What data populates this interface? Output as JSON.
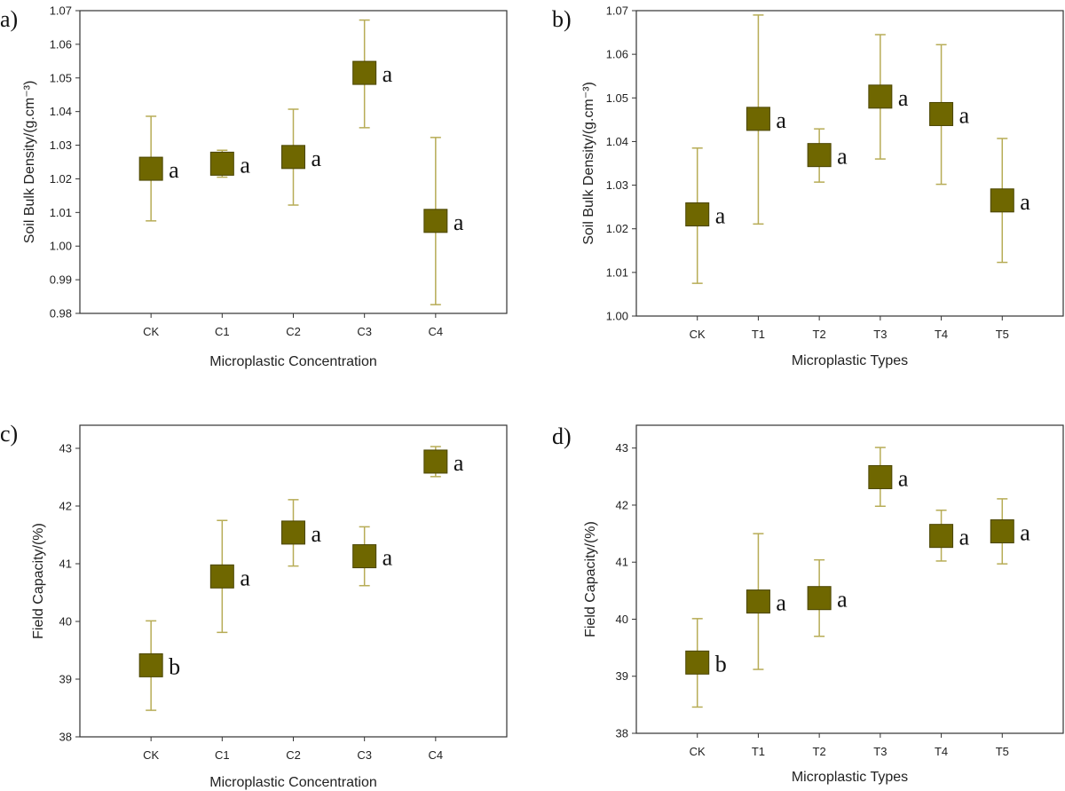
{
  "chart_data": [
    {
      "type": "scatter",
      "panel_label": "a)",
      "categories": [
        "CK",
        "C1",
        "C2",
        "C3",
        "C4"
      ],
      "values": [
        1.023,
        1.0245,
        1.0265,
        1.0515,
        1.0075
      ],
      "error_low": [
        1.0075,
        1.0205,
        1.0122,
        1.0352,
        0.9826
      ],
      "error_high": [
        1.0386,
        1.0285,
        1.0407,
        1.0672,
        1.0323
      ],
      "significance": [
        "a",
        "a",
        "a",
        "a",
        "a"
      ],
      "xlabel": "Microplastic Concentration",
      "ylabel": "Soil Bulk Density/(g.cm⁻³)",
      "ylim": [
        0.98,
        1.07
      ],
      "yticks": [
        0.98,
        0.99,
        1.0,
        1.01,
        1.02,
        1.03,
        1.04,
        1.05,
        1.06,
        1.07
      ],
      "ytick_labels": [
        "0.98",
        "0.99",
        "1.00",
        "1.01",
        "1.02",
        "1.03",
        "1.04",
        "1.05",
        "1.06",
        "1.07"
      ],
      "marker_color": "#6f6700",
      "errorbar_color": "#b7ac56"
    },
    {
      "type": "scatter",
      "panel_label": "b)",
      "categories": [
        "CK",
        "T1",
        "T2",
        "T3",
        "T4",
        "T5"
      ],
      "values": [
        1.0233,
        1.0452,
        1.0369,
        1.0503,
        1.0463,
        1.0265
      ],
      "error_low": [
        1.0075,
        1.0211,
        1.0307,
        1.036,
        1.0302,
        1.0123
      ],
      "error_high": [
        1.0385,
        1.069,
        1.0429,
        1.0645,
        1.0622,
        1.0407
      ],
      "significance": [
        "a",
        "a",
        "a",
        "a",
        "a",
        "a"
      ],
      "xlabel": "Microplastic Types",
      "ylabel": "Soil Bulk Density/(g.cm⁻³)",
      "ylim": [
        1.0,
        1.07
      ],
      "yticks": [
        1.0,
        1.01,
        1.02,
        1.03,
        1.04,
        1.05,
        1.06,
        1.07
      ],
      "ytick_labels": [
        "1.00",
        "1.01",
        "1.02",
        "1.03",
        "1.04",
        "1.05",
        "1.06",
        "1.07"
      ],
      "marker_color": "#6f6700",
      "errorbar_color": "#b7ac56"
    },
    {
      "type": "scatter",
      "panel_label": "c)",
      "categories": [
        "CK",
        "C1",
        "C2",
        "C3",
        "C4"
      ],
      "values": [
        39.24,
        40.78,
        41.54,
        41.13,
        42.77
      ],
      "error_low": [
        38.46,
        39.81,
        40.96,
        40.62,
        42.51
      ],
      "error_high": [
        40.01,
        41.75,
        42.11,
        41.64,
        43.03
      ],
      "significance": [
        "b",
        "a",
        "a",
        "a",
        "a"
      ],
      "xlabel": "Microplastic Concentration",
      "ylabel": "Field Capacity/(%)",
      "ylim": [
        38,
        43.4
      ],
      "yticks": [
        38,
        39,
        40,
        41,
        42,
        43
      ],
      "ytick_labels": [
        "38",
        "39",
        "40",
        "41",
        "42",
        "43"
      ],
      "marker_color": "#6f6700",
      "errorbar_color": "#b7ac56"
    },
    {
      "type": "scatter",
      "panel_label": "d)",
      "categories": [
        "CK",
        "T1",
        "T2",
        "T3",
        "T4",
        "T5"
      ],
      "values": [
        39.24,
        40.31,
        40.37,
        42.49,
        41.46,
        41.54
      ],
      "error_low": [
        38.46,
        39.12,
        39.7,
        41.98,
        41.02,
        40.97
      ],
      "error_high": [
        40.01,
        41.5,
        41.04,
        43.01,
        41.91,
        42.11
      ],
      "significance": [
        "b",
        "a",
        "a",
        "a",
        "a",
        "a"
      ],
      "xlabel": "Microplastic Types",
      "ylabel": "Field Capacity/(%)",
      "ylim": [
        38,
        43.4
      ],
      "yticks": [
        38,
        39,
        40,
        41,
        42,
        43
      ],
      "ytick_labels": [
        "38",
        "39",
        "40",
        "41",
        "42",
        "43"
      ],
      "marker_color": "#6f6700",
      "errorbar_color": "#b7ac56"
    }
  ]
}
